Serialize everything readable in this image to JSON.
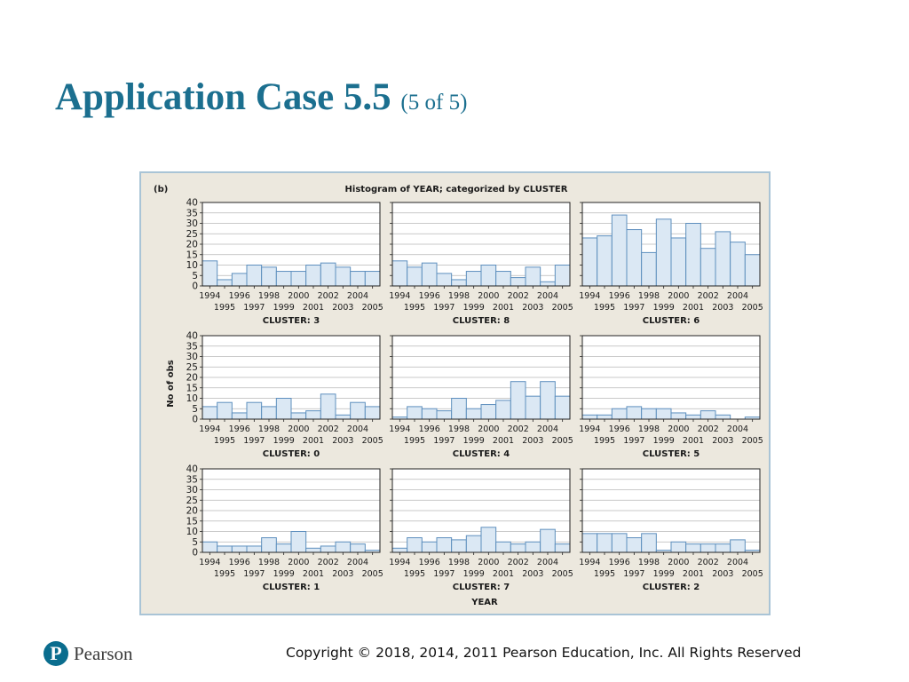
{
  "slide": {
    "title": "Application Case 5.5",
    "subtitle": "(5 of 5)",
    "copyright": "Copyright © 2018, 2014, 2011 Pearson Education, Inc. All Rights Reserved",
    "brand": "Pearson"
  },
  "colors": {
    "title": "#1b6f8f",
    "brand": "#0a6d8e",
    "frame_border": "#a9c4d6",
    "frame_bg": "#ece8de",
    "plot_bg": "#ffffff",
    "bar_fill": "#dbe8f4",
    "bar_stroke": "#5e8fbe",
    "grid": "#b8b8b8",
    "axis": "#222222",
    "text": "#1a1a1a"
  },
  "chart_data": {
    "type": "bar",
    "panel_label": "(b)",
    "title": "Histogram of YEAR; categorized by CLUSTER",
    "xlabel": "YEAR",
    "ylabel": "No of obs",
    "ylim": [
      0,
      40
    ],
    "yticks": [
      0,
      5,
      10,
      15,
      20,
      25,
      30,
      35,
      40
    ],
    "grid": true,
    "categories": [
      "1994",
      "1995",
      "1996",
      "1997",
      "1998",
      "1999",
      "2000",
      "2001",
      "2002",
      "2003",
      "2004",
      "2005"
    ],
    "series": [
      {
        "name": "CLUSTER: 3",
        "values": [
          12,
          3,
          6,
          10,
          9,
          7,
          7,
          10,
          11,
          9,
          7,
          7
        ]
      },
      {
        "name": "CLUSTER: 8",
        "values": [
          12,
          9,
          11,
          6,
          3,
          7,
          10,
          7,
          4,
          9,
          2,
          10
        ]
      },
      {
        "name": "CLUSTER: 6",
        "values": [
          23,
          24,
          34,
          27,
          16,
          32,
          23,
          30,
          18,
          26,
          21,
          15
        ]
      },
      {
        "name": "CLUSTER: 0",
        "values": [
          6,
          8,
          3,
          8,
          6,
          10,
          3,
          4,
          12,
          2,
          8,
          6
        ]
      },
      {
        "name": "CLUSTER: 4",
        "values": [
          1,
          6,
          5,
          4,
          10,
          5,
          7,
          9,
          18,
          11,
          18,
          11
        ]
      },
      {
        "name": "CLUSTER: 5",
        "values": [
          2,
          2,
          5,
          6,
          5,
          5,
          3,
          2,
          4,
          2,
          0,
          1
        ]
      },
      {
        "name": "CLUSTER: 1",
        "values": [
          5,
          3,
          3,
          3,
          7,
          4,
          10,
          2,
          3,
          5,
          4,
          1
        ]
      },
      {
        "name": "CLUSTER: 7",
        "values": [
          2,
          7,
          5,
          7,
          6,
          8,
          12,
          5,
          4,
          5,
          11,
          4
        ]
      },
      {
        "name": "CLUSTER: 2",
        "values": [
          9,
          9,
          9,
          7,
          9,
          1,
          5,
          4,
          4,
          4,
          6,
          1
        ]
      }
    ]
  }
}
